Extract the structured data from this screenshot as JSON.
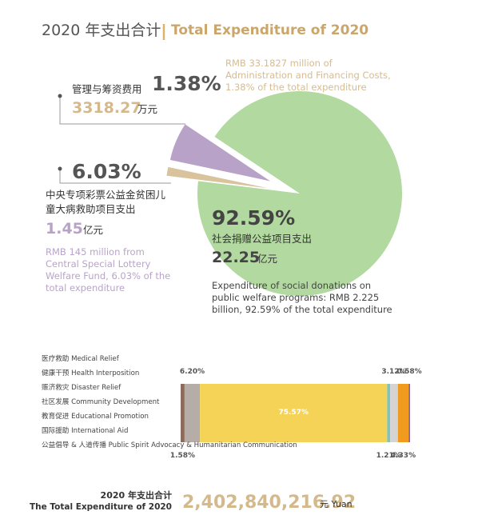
{
  "title": "2020 年支出合计",
  "title_en": "Total Expenditure of 2020",
  "chart_data": [
    {
      "type": "pie",
      "categories": [
        "管理与筹资费用",
        "中央专项彩票公益金贫困儿童大病救助项目支出",
        "社会捐赠公益项目支出"
      ],
      "values": [
        1.38,
        6.03,
        92.59
      ],
      "value_labels": [
        "1.38%",
        "6.03%",
        "92.59%"
      ],
      "colors": [
        "#d9c39c",
        "#b8a2c8",
        "#b2d99f"
      ],
      "amounts": [
        3318.27,
        1.45,
        22.25
      ],
      "amount_units": [
        "万元",
        "亿元",
        "亿元"
      ],
      "notes": [
        "RMB 33.1827 million of Administration and Financing Costs, 1.38% of the total expenditure",
        "RMB 145 million from Central Special Lottery Welfare Fund, 6.03% of the total expenditure",
        "Expenditure of social donations on public welfare programs: RMB 2.225 billion, 92.59% of the total expenditure"
      ]
    },
    {
      "type": "stacked_bar",
      "xlim": [
        0,
        92.59
      ],
      "series": [
        {
          "name": "医疗救助 Medical Relief",
          "color": "#8c6b5d",
          "values": [
            1.58
          ],
          "value_labels": [
            "1.58%"
          ],
          "label_position": "below"
        },
        {
          "name": "健康干预 Health Interposition",
          "color": "#b7ada8",
          "values": [
            6.2
          ],
          "value_labels": [
            "6.20%"
          ],
          "label_position": "above"
        },
        {
          "name": "赈济救灾 Disaster Relief",
          "color": "#f4d357",
          "values": [
            75.57
          ],
          "value_labels": [
            "75.57%"
          ],
          "label_position": "inside"
        },
        {
          "name": "社区发展 Community Development",
          "color": "#7ec5b9",
          "values": [
            1.21
          ],
          "value_labels": [
            "1.21%"
          ],
          "label_position": "below"
        },
        {
          "name": "教育促进 Educational Promotion",
          "color": "#d6d3d3",
          "values": [
            3.12
          ],
          "value_labels": [
            "3.12%"
          ],
          "label_position": "above"
        },
        {
          "name": "国际援助 International Aid",
          "color": "#f19b1e",
          "values": [
            4.33
          ],
          "value_labels": [
            "4.33%"
          ],
          "label_position": "below"
        },
        {
          "name": "公益倡导 & 人道传播 Public Spirit Advocacy & Humanitarian Communication",
          "color": "#8a63a4",
          "values": [
            0.58
          ],
          "value_labels": [
            "0.58%"
          ],
          "label_position": "above"
        }
      ]
    }
  ],
  "footer": {
    "label_cn": "2020 年支出合计",
    "label_en": "The Total Expenditure of 2020",
    "amount": "2,402,840,216.92",
    "unit": "元 Yuan"
  }
}
